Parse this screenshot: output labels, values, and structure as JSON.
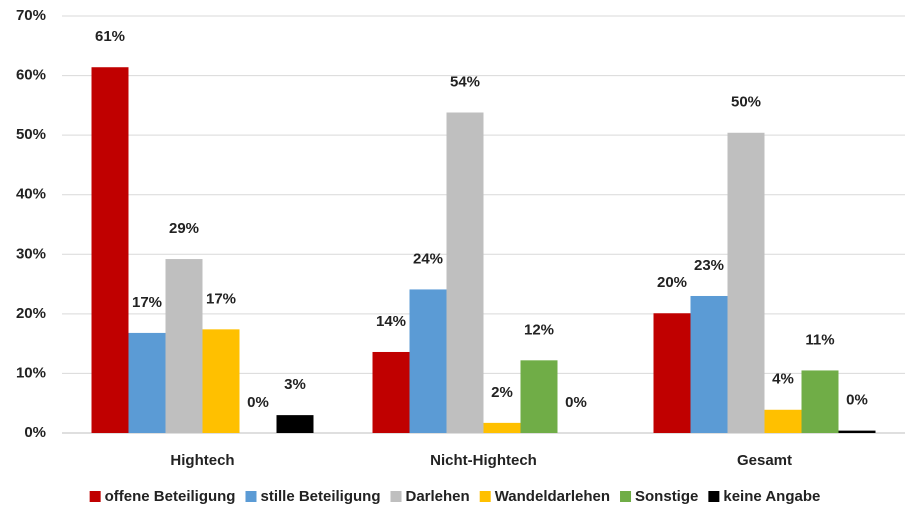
{
  "chart_data": {
    "type": "bar",
    "categories": [
      "Hightech",
      "Nicht-Hightech",
      "Gesamt"
    ],
    "series": [
      {
        "name": "offene Beteiligung",
        "color": "#c00000",
        "values": [
          61.4,
          13.6,
          20.1
        ],
        "value_labels": [
          "61%",
          "14%",
          "20%"
        ]
      },
      {
        "name": "stille Beteiligung",
        "color": "#5b9bd5",
        "values": [
          16.8,
          24.1,
          23.0
        ],
        "value_labels": [
          "17%",
          "24%",
          "23%"
        ]
      },
      {
        "name": "Darlehen",
        "color": "#bfbfbf",
        "values": [
          29.2,
          53.8,
          50.4
        ],
        "value_labels": [
          "29%",
          "54%",
          "50%"
        ]
      },
      {
        "name": "Wandeldarlehen",
        "color": "#ffc000",
        "values": [
          17.4,
          1.7,
          3.9
        ],
        "value_labels": [
          "17%",
          "2%",
          "4%"
        ]
      },
      {
        "name": "Sonstige",
        "color": "#70ad47",
        "values": [
          0,
          12.2,
          10.5
        ],
        "value_labels": [
          "0%",
          "12%",
          "11%"
        ]
      },
      {
        "name": "keine Angabe",
        "color": "#000000",
        "values": [
          3.0,
          0,
          0.4
        ],
        "value_labels": [
          "3%",
          "0%",
          "0%"
        ]
      }
    ],
    "ylim": [
      0,
      70
    ],
    "yticks": [
      {
        "value": 0,
        "label": "0%"
      },
      {
        "value": 10,
        "label": "10%"
      },
      {
        "value": 20,
        "label": "20%"
      },
      {
        "value": 30,
        "label": "30%"
      },
      {
        "value": 40,
        "label": "40%"
      },
      {
        "value": 50,
        "label": "50%"
      },
      {
        "value": 60,
        "label": "60%"
      },
      {
        "value": 70,
        "label": "70%"
      }
    ],
    "grid": true,
    "legend": "bottom"
  }
}
